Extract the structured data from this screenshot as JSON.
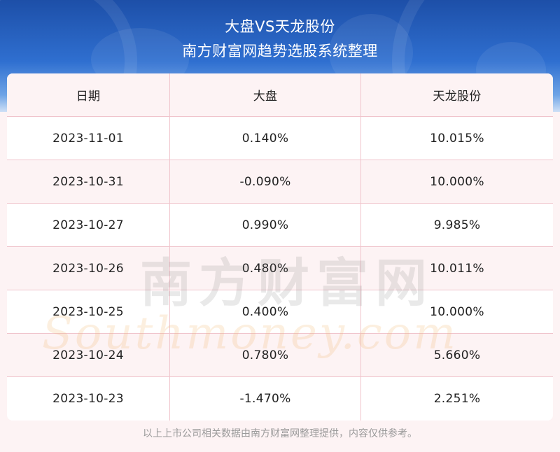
{
  "header": {
    "title": "大盘VS天龙股份",
    "subtitle": "南方财富网趋势选股系统整理"
  },
  "table": {
    "columns": [
      "日期",
      "大盘",
      "天龙股份"
    ],
    "rows": [
      [
        "2023-11-01",
        "0.140%",
        "10.015%"
      ],
      [
        "2023-10-31",
        "-0.090%",
        "10.000%"
      ],
      [
        "2023-10-27",
        "0.990%",
        "9.985%"
      ],
      [
        "2023-10-26",
        "0.480%",
        "10.011%"
      ],
      [
        "2023-10-25",
        "0.400%",
        "10.000%"
      ],
      [
        "2023-10-24",
        "0.780%",
        "5.660%"
      ],
      [
        "2023-10-23",
        "-1.470%",
        "2.251%"
      ]
    ]
  },
  "watermark": {
    "cn": "南方财富网",
    "en": "Southmoney.com"
  },
  "footer": {
    "note": "以上上市公司相关数据由南方财富网整理提供，内容仅供参考。"
  }
}
